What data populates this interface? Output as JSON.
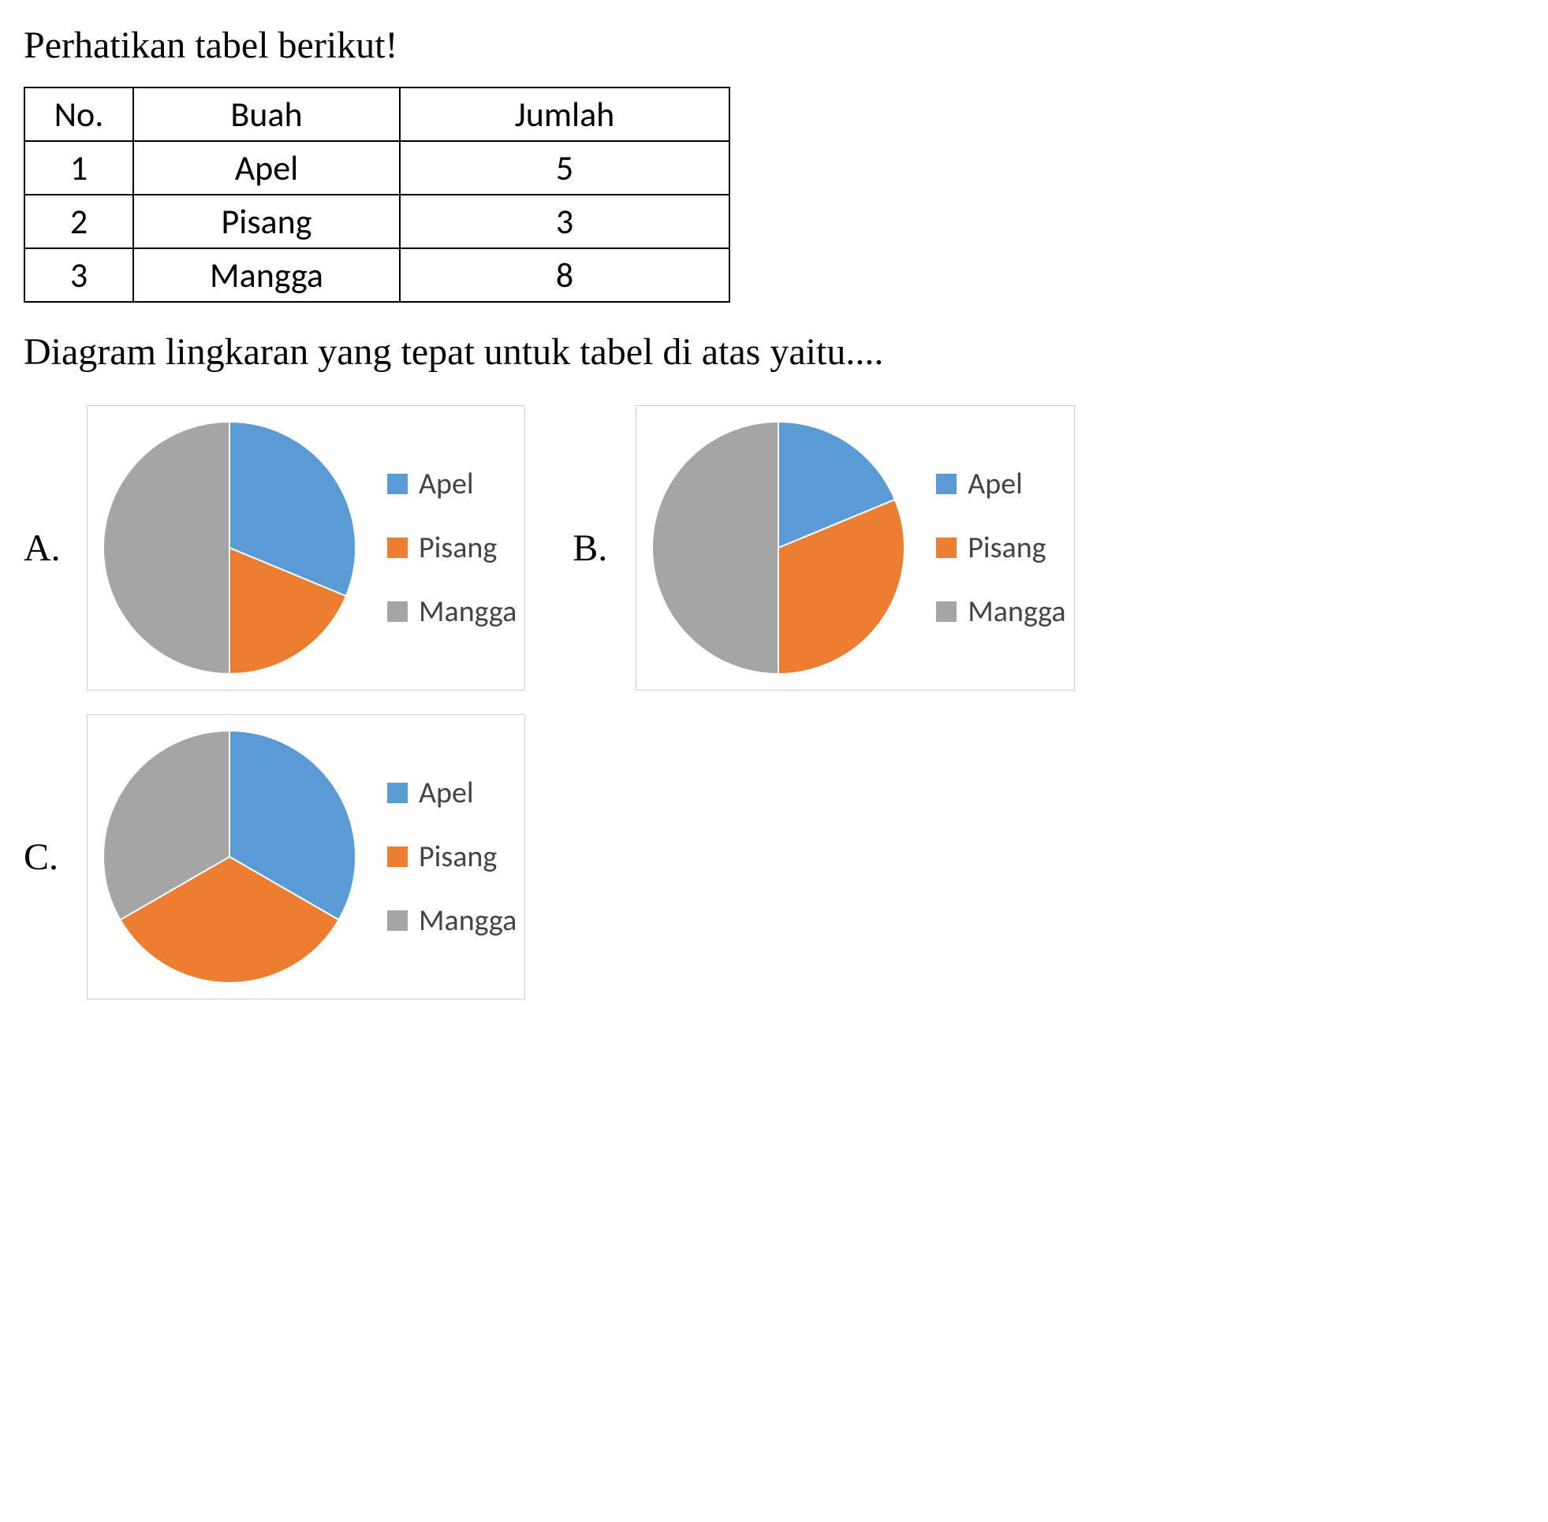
{
  "heading": "Perhatikan tabel berikut!",
  "table": {
    "columns": [
      "No.",
      "Buah",
      "Jumlah"
    ],
    "rows": [
      [
        "1",
        "Apel",
        "5"
      ],
      [
        "2",
        "Pisang",
        "3"
      ],
      [
        "3",
        "Mangga",
        "8"
      ]
    ],
    "border_color": "#000000",
    "font_size": 44
  },
  "question": "Diagram lingkaran yang tepat untuk tabel di atas yaitu....",
  "legend_labels": [
    "Apel",
    "Pisang",
    "Mangga"
  ],
  "colors": {
    "apel": "#5b9bd5",
    "pisang": "#ed7d31",
    "mangga": "#a5a5a5"
  },
  "charts": {
    "A": {
      "label": "A.",
      "type": "pie",
      "series": [
        {
          "name": "Apel",
          "fraction": 0.3125,
          "color": "#5b9bd5"
        },
        {
          "name": "Pisang",
          "fraction": 0.1875,
          "color": "#ed7d31"
        },
        {
          "name": "Mangga",
          "fraction": 0.5,
          "color": "#a5a5a5"
        }
      ],
      "radius": 160,
      "start_angle_deg": 0,
      "background_color": "#ffffff",
      "card_border": "#d0d0d0"
    },
    "B": {
      "label": "B.",
      "type": "pie",
      "series": [
        {
          "name": "Apel",
          "fraction": 0.1875,
          "color": "#5b9bd5"
        },
        {
          "name": "Pisang",
          "fraction": 0.3125,
          "color": "#ed7d31"
        },
        {
          "name": "Mangga",
          "fraction": 0.5,
          "color": "#a5a5a5"
        }
      ],
      "radius": 160,
      "start_angle_deg": 0,
      "background_color": "#ffffff",
      "card_border": "#d0d0d0"
    },
    "C": {
      "label": "C.",
      "type": "pie",
      "series": [
        {
          "name": "Apel",
          "fraction": 0.3333,
          "color": "#5b9bd5"
        },
        {
          "name": "Pisang",
          "fraction": 0.3333,
          "color": "#ed7d31"
        },
        {
          "name": "Mangga",
          "fraction": 0.3334,
          "color": "#a5a5a5"
        }
      ],
      "radius": 160,
      "start_angle_deg": 0,
      "background_color": "#ffffff",
      "card_border": "#d0d0d0"
    }
  },
  "layout": {
    "row1": [
      "A",
      "B"
    ],
    "row2": [
      "C"
    ]
  }
}
